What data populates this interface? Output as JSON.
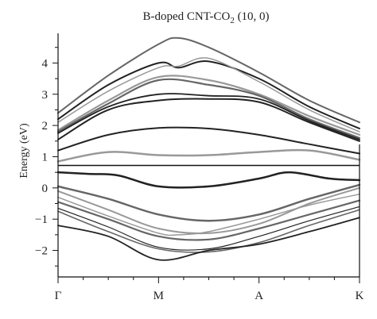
{
  "chart_data": {
    "type": "line",
    "title": "B-doped CNT-CO",
    "title_sub": "2",
    "title_suffix": " (10, 0)",
    "xlabel": "",
    "ylabel": "Energy (eV)",
    "x_ticks": [
      "Γ",
      "M",
      "A",
      "K"
    ],
    "x_tick_positions": [
      0,
      1,
      2,
      3
    ],
    "xlim": [
      0,
      3
    ],
    "ylim": [
      -2.85,
      4.95
    ],
    "y_ticks": [
      -2,
      -1,
      0,
      1,
      2,
      3,
      4
    ],
    "fermi_level": 0.72,
    "grid": false,
    "colors": {
      "dark": "#222222",
      "mid": "#666666",
      "light": "#999999"
    },
    "series": [
      {
        "shade": "mid",
        "width": 2.0,
        "x": [
          0,
          0.5,
          1,
          1.2,
          1.5,
          2,
          2.5,
          3
        ],
        "y": [
          2.4,
          3.6,
          4.6,
          4.8,
          4.5,
          3.7,
          2.8,
          2.1
        ]
      },
      {
        "shade": "dark",
        "width": 2.0,
        "x": [
          0,
          0.5,
          1,
          1.2,
          1.5,
          2,
          2.5,
          3
        ],
        "y": [
          2.2,
          3.3,
          4.0,
          3.85,
          4.05,
          3.5,
          2.6,
          1.9
        ]
      },
      {
        "shade": "light",
        "width": 1.5,
        "x": [
          0,
          0.5,
          1,
          1.2,
          1.5,
          2,
          2.5,
          3
        ],
        "y": [
          2.1,
          3.1,
          3.85,
          3.9,
          4.15,
          3.4,
          2.5,
          1.8
        ]
      },
      {
        "shade": "light",
        "width": 2.2,
        "x": [
          0,
          0.5,
          1,
          1.5,
          2,
          2.5,
          3
        ],
        "y": [
          1.85,
          2.8,
          3.55,
          3.45,
          3.0,
          2.3,
          1.7
        ]
      },
      {
        "shade": "mid",
        "width": 2.2,
        "x": [
          0,
          0.5,
          1,
          1.5,
          2,
          2.5,
          3
        ],
        "y": [
          1.8,
          2.7,
          3.45,
          3.3,
          2.95,
          2.2,
          1.6
        ]
      },
      {
        "shade": "dark",
        "width": 1.8,
        "x": [
          0,
          0.5,
          1,
          1.5,
          2,
          2.5,
          3
        ],
        "y": [
          1.75,
          2.6,
          3.0,
          2.95,
          2.85,
          2.15,
          1.55
        ]
      },
      {
        "shade": "dark",
        "width": 2.0,
        "x": [
          0,
          0.5,
          1,
          1.5,
          2,
          2.5,
          3
        ],
        "y": [
          1.55,
          2.5,
          2.8,
          2.85,
          2.75,
          2.1,
          1.5
        ]
      },
      {
        "shade": "dark",
        "width": 2.0,
        "x": [
          0,
          0.5,
          1,
          1.5,
          2,
          2.5,
          3
        ],
        "y": [
          1.2,
          1.7,
          1.92,
          1.9,
          1.7,
          1.4,
          1.1
        ]
      },
      {
        "shade": "light",
        "width": 2.5,
        "x": [
          0,
          0.5,
          1,
          1.5,
          2,
          2.5,
          3
        ],
        "y": [
          0.85,
          1.15,
          1.05,
          1.05,
          1.15,
          1.2,
          0.9
        ]
      },
      {
        "shade": "dark",
        "width": 2.5,
        "x": [
          0,
          0.3,
          0.6,
          1,
          1.5,
          2,
          2.3,
          2.7,
          3
        ],
        "y": [
          0.5,
          0.45,
          0.4,
          0.05,
          0.05,
          0.3,
          0.5,
          0.3,
          0.25
        ]
      },
      {
        "shade": "mid",
        "width": 2.5,
        "x": [
          0,
          0.5,
          1,
          1.5,
          2,
          2.5,
          3
        ],
        "y": [
          0.05,
          -0.35,
          -0.85,
          -1.05,
          -0.85,
          -0.35,
          0.1
        ]
      },
      {
        "shade": "light",
        "width": 2.0,
        "x": [
          0,
          0.5,
          1,
          1.5,
          2,
          2.5,
          3
        ],
        "y": [
          -0.1,
          -0.7,
          -1.3,
          -1.45,
          -1.15,
          -0.5,
          0.0
        ]
      },
      {
        "shade": "light",
        "width": 1.5,
        "x": [
          0,
          0.5,
          1,
          1.2,
          1.5,
          2,
          2.5,
          3
        ],
        "y": [
          -0.3,
          -0.9,
          -1.45,
          -1.5,
          -1.4,
          -1.0,
          -0.55,
          -0.2
        ]
      },
      {
        "shade": "mid",
        "width": 2.2,
        "x": [
          0,
          0.5,
          1,
          1.5,
          2,
          2.5,
          3
        ],
        "y": [
          -0.45,
          -1.0,
          -1.55,
          -1.65,
          -1.3,
          -0.85,
          -0.4
        ]
      },
      {
        "shade": "dark",
        "width": 1.2,
        "x": [
          0,
          0.5,
          1,
          1.5,
          2,
          2.5,
          3
        ],
        "y": [
          -0.65,
          -1.25,
          -1.9,
          -1.95,
          -1.55,
          -1.05,
          -0.6
        ]
      },
      {
        "shade": "mid",
        "width": 1.6,
        "x": [
          0,
          0.5,
          1,
          1.5,
          2,
          2.5,
          3
        ],
        "y": [
          -0.75,
          -1.4,
          -1.95,
          -2.05,
          -1.75,
          -1.2,
          -0.7
        ]
      },
      {
        "shade": "dark",
        "width": 1.8,
        "x": [
          0,
          0.5,
          1,
          1.5,
          2,
          2.5,
          3
        ],
        "y": [
          -1.2,
          -1.55,
          -2.3,
          -2.0,
          -1.8,
          -1.4,
          -0.95
        ]
      }
    ]
  }
}
